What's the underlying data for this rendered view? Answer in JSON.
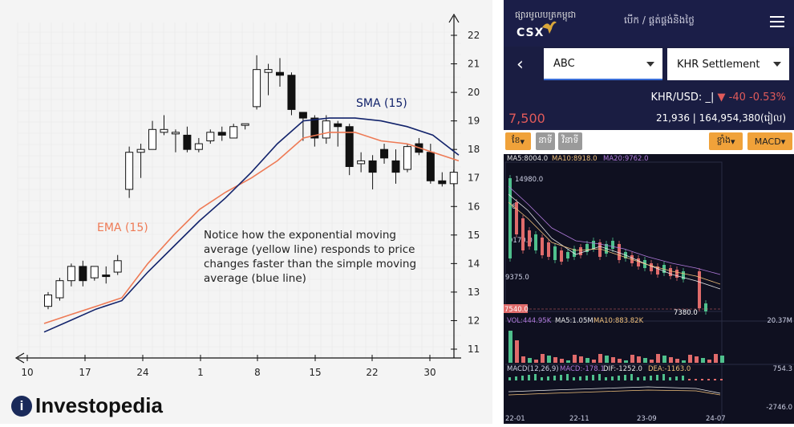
{
  "left_chart": {
    "chart_data": {
      "type": "candlestick",
      "x_ticks": [
        "10",
        "17",
        "24",
        "1",
        "8",
        "15",
        "22",
        "30"
      ],
      "y_ticks": [
        11,
        12,
        13,
        14,
        15,
        16,
        17,
        18,
        19,
        20,
        21,
        22
      ],
      "ylim": [
        10.6,
        22.6
      ],
      "candles": [
        {
          "o": 12.5,
          "h": 13.0,
          "l": 12.4,
          "c": 12.9,
          "up": true
        },
        {
          "o": 12.8,
          "h": 13.5,
          "l": 12.7,
          "c": 13.4,
          "up": true
        },
        {
          "o": 13.4,
          "h": 14.0,
          "l": 13.2,
          "c": 13.9,
          "up": true
        },
        {
          "o": 13.9,
          "h": 14.1,
          "l": 13.2,
          "c": 13.4,
          "up": false
        },
        {
          "o": 13.5,
          "h": 13.9,
          "l": 13.4,
          "c": 13.9,
          "up": true
        },
        {
          "o": 13.6,
          "h": 13.9,
          "l": 13.3,
          "c": 13.6,
          "up": false
        },
        {
          "o": 13.7,
          "h": 14.3,
          "l": 13.6,
          "c": 14.1,
          "up": true
        },
        {
          "o": 16.6,
          "h": 18.1,
          "l": 16.3,
          "c": 17.9,
          "up": true
        },
        {
          "o": 17.9,
          "h": 18.2,
          "l": 17.0,
          "c": 18.0,
          "up": true
        },
        {
          "o": 18.0,
          "h": 19.0,
          "l": 18.0,
          "c": 18.7,
          "up": true
        },
        {
          "o": 18.6,
          "h": 19.2,
          "l": 18.5,
          "c": 18.7,
          "up": true
        },
        {
          "o": 18.6,
          "h": 18.7,
          "l": 17.9,
          "c": 18.6,
          "up": true
        },
        {
          "o": 18.5,
          "h": 18.8,
          "l": 17.9,
          "c": 18.0,
          "up": false
        },
        {
          "o": 18.0,
          "h": 18.4,
          "l": 17.9,
          "c": 18.2,
          "up": true
        },
        {
          "o": 18.3,
          "h": 18.7,
          "l": 18.2,
          "c": 18.6,
          "up": true
        },
        {
          "o": 18.5,
          "h": 18.8,
          "l": 18.3,
          "c": 18.6,
          "up": false
        },
        {
          "o": 18.4,
          "h": 18.9,
          "l": 18.4,
          "c": 18.8,
          "up": true
        },
        {
          "o": 18.9,
          "h": 18.9,
          "l": 18.7,
          "c": 18.9,
          "up": true
        },
        {
          "o": 19.5,
          "h": 21.3,
          "l": 19.4,
          "c": 20.8,
          "up": true
        },
        {
          "o": 20.8,
          "h": 21.0,
          "l": 19.9,
          "c": 20.7,
          "up": true
        },
        {
          "o": 20.7,
          "h": 21.2,
          "l": 20.2,
          "c": 20.6,
          "up": false
        },
        {
          "o": 20.6,
          "h": 20.7,
          "l": 19.2,
          "c": 19.4,
          "up": false
        },
        {
          "o": 19.3,
          "h": 19.3,
          "l": 18.3,
          "c": 19.1,
          "up": false
        },
        {
          "o": 19.1,
          "h": 19.2,
          "l": 18.1,
          "c": 18.4,
          "up": false
        },
        {
          "o": 18.4,
          "h": 19.2,
          "l": 18.2,
          "c": 19.0,
          "up": true
        },
        {
          "o": 18.9,
          "h": 19.0,
          "l": 18.1,
          "c": 18.8,
          "up": false
        },
        {
          "o": 18.8,
          "h": 18.9,
          "l": 17.1,
          "c": 17.4,
          "up": false
        },
        {
          "o": 17.5,
          "h": 17.9,
          "l": 17.2,
          "c": 17.6,
          "up": true
        },
        {
          "o": 17.6,
          "h": 17.8,
          "l": 16.6,
          "c": 17.2,
          "up": false
        },
        {
          "o": 18.0,
          "h": 18.2,
          "l": 17.5,
          "c": 17.7,
          "up": false
        },
        {
          "o": 17.6,
          "h": 18.0,
          "l": 16.8,
          "c": 17.2,
          "up": false
        },
        {
          "o": 17.3,
          "h": 18.2,
          "l": 17.2,
          "c": 18.1,
          "up": true
        },
        {
          "o": 18.2,
          "h": 18.4,
          "l": 17.8,
          "c": 17.9,
          "up": false
        },
        {
          "o": 17.9,
          "h": 18.2,
          "l": 16.8,
          "c": 16.9,
          "up": false
        },
        {
          "o": 16.9,
          "h": 17.2,
          "l": 16.7,
          "c": 16.8,
          "up": false
        },
        {
          "o": 16.8,
          "h": 17.3,
          "l": 16.7,
          "c": 17.2,
          "up": true
        }
      ],
      "sma": {
        "name": "SMA (15)",
        "values": [
          11.6,
          12.0,
          12.4,
          12.7,
          13.7,
          14.6,
          15.5,
          16.3,
          17.2,
          18.2,
          19.0,
          19.1,
          19.1,
          19.0,
          18.8,
          18.5,
          17.8
        ]
      },
      "ema": {
        "name": "EMA (15)",
        "values": [
          11.9,
          12.2,
          12.5,
          12.8,
          14.0,
          15.0,
          15.9,
          16.5,
          17.0,
          17.6,
          18.4,
          18.6,
          18.6,
          18.3,
          18.2,
          17.9,
          17.6
        ]
      },
      "annotation": "Notice how the exponential moving average (yellow line) responds to price changes faster than the simple moving average (blue line)",
      "grid": true,
      "colors": {
        "sma": "#12236b",
        "ema": "#ee7a55",
        "up": "#ffffff",
        "down": "#111111"
      }
    },
    "brand": {
      "mark": "i",
      "name": "Investopedia"
    }
  },
  "app": {
    "logo_top": "ផ្សារមូលបត្រកម្ពុជា",
    "logo_name": "CSX",
    "nav": "បើក / ផ្គត់ផ្គង់និង​ថ្លៃ",
    "symbol": "ABC",
    "settlement": "KHR Settlement",
    "fx_label": "KHR/USD:",
    "fx_value": "_|",
    "fx_change": "-40",
    "fx_pct": "-0.53%",
    "price": "7,500",
    "volume": "21,936",
    "separator": "|",
    "value": "164,954,380(រៀល)",
    "buttons": {
      "month": "ខែ",
      "minute": "នាទី",
      "sound": "វិនាទី",
      "wide": "ខ្លាំង",
      "indicator": "MACD"
    },
    "chart2": {
      "ma_labels": {
        "ma5": "MA5:8004.0",
        "ma10": "MA10:8918.0",
        "ma20": "MA20:9762.0"
      },
      "left_labels": [
        "14980.0",
        "6",
        "9170.0",
        "9375.0"
      ],
      "last_price_tag": "7540.0",
      "low_label": "7380.0",
      "vol_labels": {
        "vol": "VOL:444.95K",
        "ma5": "MA5:1.05M",
        "ma10": "MA10:883.82K",
        "right": "20.37M"
      },
      "macd_labels": {
        "macd": "MACD(12,26,9)",
        "macd_val": "MACD:-178.1",
        "dif": "DIF:-1252.0",
        "dea": "DEA:-1163.0",
        "right_top": "754.3",
        "right_bottom": "-2746.0"
      },
      "x_labels": [
        "22-01",
        "22-11",
        "23-09",
        "24-07"
      ],
      "colors": {
        "up": "#4fc08d",
        "down": "#e06b6b",
        "ma5": "#e6e6e6",
        "ma10": "#f0c07a",
        "ma20": "#b07adb"
      }
    }
  }
}
